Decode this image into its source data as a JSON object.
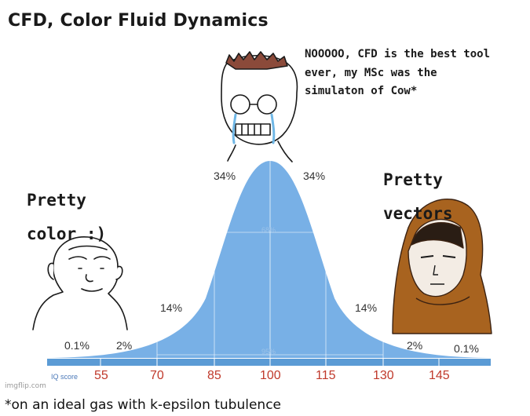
{
  "meme": {
    "title": "CFD, Color Fluid Dynamics",
    "caption_mid": "NOOOOO, CFD is the best tool ever, my MSc was the simulaton of Cow*",
    "caption_left": "Pretty color :)",
    "caption_right": "Pretty vectors",
    "footnote": "*on an ideal gas with k-epsilon tubulence",
    "watermark": "imgflip.com"
  },
  "chart_data": {
    "type": "area",
    "xlabel": "IQ score",
    "x_ticks": [
      "55",
      "70",
      "85",
      "100",
      "115",
      "130",
      "145"
    ],
    "band_percentages": [
      "0.1%",
      "2%",
      "14%",
      "34%",
      "34%",
      "14%",
      "2%",
      "0.1%"
    ],
    "inner_labels": [
      "68%",
      "95%"
    ],
    "colors": {
      "curve": "#78b0e6",
      "axis": "#5b9bd5",
      "ticks": "#c0392b"
    }
  }
}
